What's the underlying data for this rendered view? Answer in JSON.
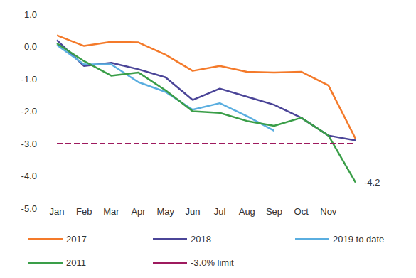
{
  "chart_data": {
    "type": "line",
    "categories": [
      "Jan",
      "Feb",
      "Mar",
      "Apr",
      "May",
      "Jun",
      "Jul",
      "Aug",
      "Sep",
      "Oct",
      "Nov",
      null
    ],
    "series": [
      {
        "name": "2017",
        "color": "#f47a2a",
        "line_style": "solid",
        "marker": "none",
        "values": [
          0.35,
          0.02,
          0.15,
          0.13,
          -0.25,
          -0.75,
          -0.6,
          -0.78,
          -0.8,
          -0.78,
          -1.2,
          -2.85
        ]
      },
      {
        "name": "2018",
        "color": "#4b4598",
        "line_style": "solid",
        "marker": "none",
        "values": [
          0.2,
          -0.6,
          -0.5,
          -0.7,
          -0.95,
          -1.65,
          -1.3,
          -1.55,
          -1.8,
          -2.2,
          -2.75,
          -2.9
        ]
      },
      {
        "name": "2019 to date",
        "color": "#5aaee0",
        "line_style": "solid",
        "marker": "none",
        "values": [
          0.05,
          -0.55,
          -0.55,
          -1.1,
          -1.4,
          -1.95,
          -1.75,
          -2.15,
          -2.6,
          null,
          null,
          null
        ]
      },
      {
        "name": "2011",
        "color": "#3a9e48",
        "line_style": "solid",
        "marker": "none",
        "values": [
          0.1,
          -0.45,
          -0.9,
          -0.8,
          -1.35,
          -2.0,
          -2.05,
          -2.3,
          -2.45,
          -2.2,
          -2.75,
          -4.2
        ]
      },
      {
        "name": "-3.0% limit",
        "color": "#9e1a5e",
        "line_style": "dashed",
        "marker": "none",
        "values": [
          -3,
          -3,
          -3,
          -3,
          -3,
          -3,
          -3,
          -3,
          -3,
          -3,
          -3,
          -3
        ]
      }
    ],
    "annotations": [
      {
        "series": "2011",
        "index": 11,
        "text": "-4.2"
      }
    ],
    "ylim": [
      -5,
      1
    ],
    "yticks": [
      {
        "value": -5,
        "label": "-5.0"
      },
      {
        "value": -4,
        "label": "-4.0"
      },
      {
        "value": -3,
        "label": "-3.0"
      },
      {
        "value": -2,
        "label": "-2.0"
      },
      {
        "value": -1,
        "label": "-1.0"
      },
      {
        "value": 0,
        "label": "0.0"
      },
      {
        "value": 1,
        "label": "1.0"
      }
    ],
    "grid": false,
    "legend": "bottom"
  }
}
